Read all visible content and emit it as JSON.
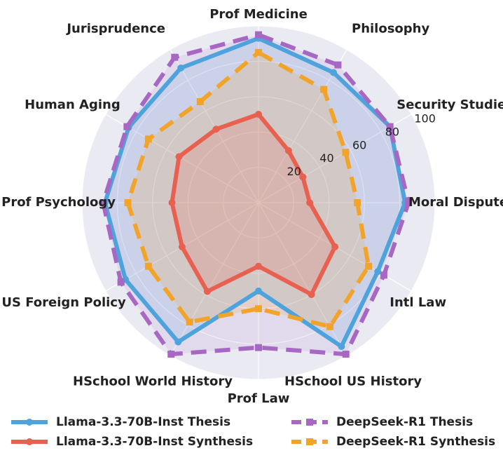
{
  "chart_data": {
    "type": "radar",
    "categories": [
      "Prof Medicine",
      "Philosophy",
      "Security Studies",
      "Moral Disputes",
      "Intl Law",
      "HSchool US History",
      "Prof Law",
      "HSchool World History",
      "US Foreign Policy",
      "Prof Psychology",
      "Human Aging",
      "Jurisprudence"
    ],
    "rlim": [
      0,
      100
    ],
    "rticks": [
      20,
      40,
      60,
      80,
      100
    ],
    "grid": true,
    "legend_position": "bottom",
    "series": [
      {
        "name": "Llama-3.3-70B-Inst Thesis",
        "color": "#4ea3dc",
        "style": "solid",
        "marker": "circle",
        "values": [
          93,
          85,
          86,
          83,
          78,
          94,
          50,
          91,
          87,
          87,
          85,
          88
        ]
      },
      {
        "name": "Llama-3.3-70B-Inst Synthesis",
        "color": "#e8604f",
        "style": "solid",
        "marker": "circle",
        "values": [
          50,
          34,
          29,
          29,
          50,
          60,
          36,
          58,
          50,
          49,
          52,
          48
        ]
      },
      {
        "name": "DeepSeek-R1 Thesis",
        "color": "#a768c3",
        "style": "dashed",
        "marker": "square",
        "values": [
          95,
          90,
          86,
          85,
          82,
          99,
          82,
          99,
          90,
          88,
          86,
          95
        ]
      },
      {
        "name": "DeepSeek-R1 Synthesis",
        "color": "#f2a42a",
        "style": "dashed",
        "marker": "square",
        "values": [
          85,
          74,
          57,
          56,
          72,
          81,
          60,
          78,
          72,
          74,
          72,
          66
        ]
      }
    ]
  }
}
